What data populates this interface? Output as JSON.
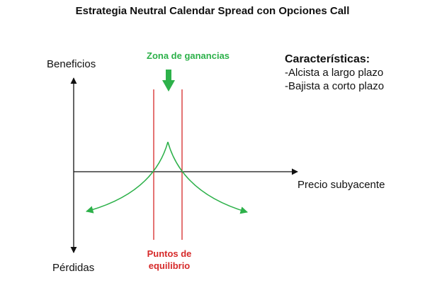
{
  "title": "Estrategia Neutral Calendar Spread con Opciones Call",
  "axes": {
    "y_top_label": "Beneficios",
    "y_bottom_label": "Pérdidas",
    "x_label": "Precio subyacente"
  },
  "profit_zone": {
    "label": "Zona de ganancias",
    "color": "#2db14a"
  },
  "breakeven": {
    "label_line1": "Puntos de",
    "label_line2": "equilibrio",
    "color": "#d62a2a"
  },
  "features": {
    "title": "Características:",
    "items": [
      "-Alcista a largo plazo",
      "-Bajista a corto plazo"
    ]
  },
  "payoff_curve": {
    "color": "#2db14a"
  }
}
